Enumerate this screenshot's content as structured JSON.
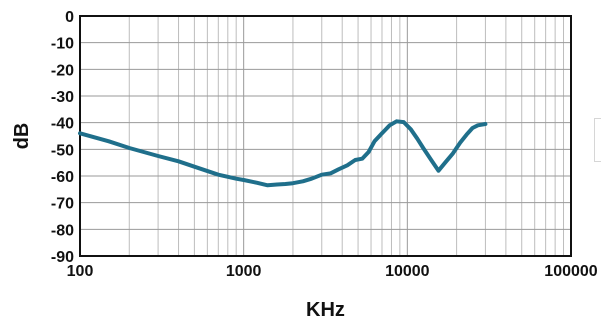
{
  "chart_data": {
    "type": "line",
    "title": "",
    "xlabel": "KHz",
    "ylabel": "dB",
    "xscale": "log",
    "xlim": [
      100,
      100000
    ],
    "ylim": [
      -90,
      0
    ],
    "xticks": [
      "100",
      "1000",
      "10000",
      "100000"
    ],
    "yticks": [
      "0",
      "-10",
      "-20",
      "-30",
      "-40",
      "-50",
      "-60",
      "-70",
      "-80",
      "-90"
    ],
    "grid": true,
    "legend": "right (empty box, partially cut off)",
    "series": [
      {
        "color": "#1f6f8b",
        "x": [
          100,
          150,
          200,
          300,
          400,
          500,
          700,
          900,
          1000,
          1200,
          1400,
          1600,
          1800,
          2000,
          2300,
          2600,
          3000,
          3400,
          3800,
          4300,
          4800,
          5300,
          5800,
          6300,
          7000,
          7800,
          8600,
          9500,
          10500,
          11500,
          12500,
          14000,
          15500,
          17000,
          19000,
          21000,
          23000,
          25000,
          27000,
          30000
        ],
        "y": [
          -44,
          -47,
          -49.5,
          -52.5,
          -54.5,
          -56.5,
          -59.5,
          -61,
          -61.5,
          -62.5,
          -63.5,
          -63.2,
          -63,
          -62.7,
          -62,
          -61,
          -59.5,
          -59,
          -57.5,
          -56,
          -54,
          -53.5,
          -51,
          -47,
          -44,
          -41,
          -39.5,
          -39.8,
          -42.5,
          -46,
          -49.5,
          -54,
          -58,
          -55,
          -51.5,
          -47.5,
          -44.5,
          -42,
          -41,
          -40.5
        ]
      }
    ]
  }
}
